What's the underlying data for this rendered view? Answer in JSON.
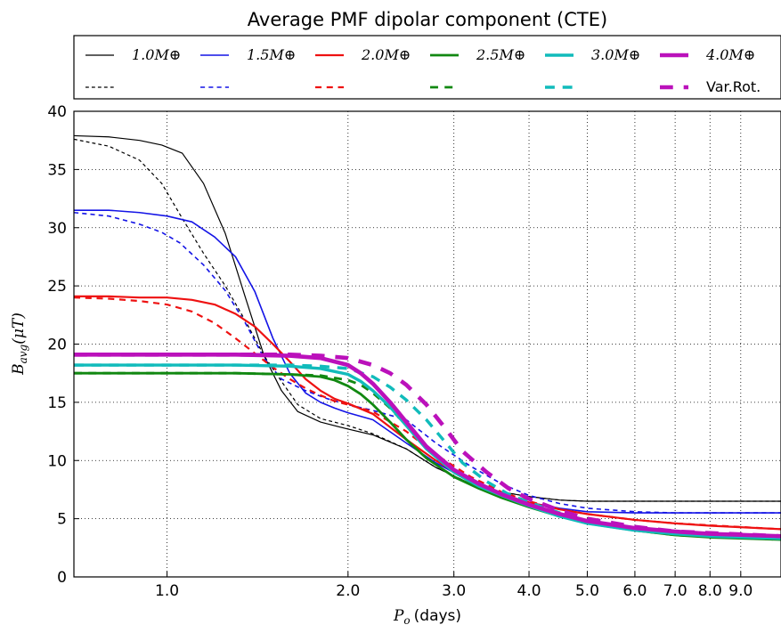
{
  "chart_data": {
    "type": "line",
    "title": "Average PMF dipolar component (CTE)",
    "xlabel": "(days)",
    "xlabel_symbol": "P",
    "xlabel_symbol_sub": "o",
    "ylabel": "(μT)",
    "ylabel_symbol": "B",
    "ylabel_symbol_sub": "avg",
    "x_scale": "log",
    "xlim": [
      0.7,
      10.5
    ],
    "ylim": [
      0,
      40
    ],
    "x_ticks": [
      1.0,
      2.0,
      3.0,
      4.0,
      5.0,
      6.0,
      7.0,
      8.0,
      9.0
    ],
    "x_tick_labels": [
      "1.0",
      "2.0",
      "3.0",
      "4.0",
      "5.0",
      "6.0",
      "7.0",
      "8.0",
      "9.0"
    ],
    "y_ticks": [
      0,
      5,
      10,
      15,
      20,
      25,
      30,
      35,
      40
    ],
    "y_tick_labels": [
      "0",
      "5",
      "10",
      "15",
      "20",
      "25",
      "30",
      "35",
      "40"
    ],
    "grid": true,
    "legend_position": "top",
    "legend_extra_label": "Var.Rot.",
    "series": [
      {
        "name": "1.0M⊕",
        "color": "#000000",
        "style": "solid",
        "width": 1.2,
        "x": [
          0.7,
          0.8,
          0.9,
          0.98,
          1.06,
          1.15,
          1.25,
          1.35,
          1.45,
          1.55,
          1.65,
          1.8,
          2.0,
          2.2,
          2.5,
          2.8,
          3.2,
          3.6,
          4.0,
          4.5,
          5.0,
          6.0,
          7.0,
          8.0,
          10.5
        ],
        "y": [
          37.9,
          37.8,
          37.5,
          37.1,
          36.4,
          33.8,
          29.5,
          24.0,
          19.0,
          16.0,
          14.2,
          13.3,
          12.7,
          12.2,
          11.0,
          9.4,
          8.0,
          7.3,
          6.9,
          6.6,
          6.5,
          6.5,
          6.5,
          6.5,
          6.5
        ]
      },
      {
        "name": "",
        "color": "#000000",
        "style": "dashed",
        "width": 1.2,
        "x": [
          0.7,
          0.8,
          0.9,
          0.98,
          1.06,
          1.15,
          1.25,
          1.35,
          1.45,
          1.55,
          1.65,
          1.8,
          2.0,
          2.2,
          2.5,
          2.8,
          3.2,
          3.6,
          4.0,
          4.5,
          5.0,
          6.0,
          7.0,
          8.0,
          10.5
        ],
        "y": [
          37.6,
          37.0,
          35.8,
          33.8,
          30.8,
          27.8,
          25.0,
          22.0,
          19.0,
          16.8,
          14.8,
          13.6,
          13.0,
          12.3,
          11.0,
          9.4,
          8.0,
          7.3,
          6.9,
          6.6,
          6.5,
          6.5,
          6.5,
          6.5,
          6.5
        ]
      },
      {
        "name": "1.5M⊕",
        "color": "#1414e6",
        "style": "solid",
        "width": 1.6,
        "x": [
          0.7,
          0.8,
          0.9,
          1.0,
          1.1,
          1.2,
          1.3,
          1.4,
          1.5,
          1.6,
          1.7,
          1.8,
          1.9,
          2.0,
          2.2,
          2.5,
          2.8,
          3.2,
          3.6,
          4.0,
          4.5,
          5.0,
          6.0,
          7.0,
          10.5
        ],
        "y": [
          31.5,
          31.5,
          31.3,
          31.0,
          30.5,
          29.2,
          27.5,
          24.5,
          20.5,
          17.5,
          15.8,
          15.0,
          14.5,
          14.1,
          13.5,
          11.5,
          9.8,
          8.2,
          7.0,
          6.4,
          5.9,
          5.6,
          5.5,
          5.5,
          5.5
        ]
      },
      {
        "name": "",
        "color": "#1414e6",
        "style": "dashed",
        "width": 1.6,
        "x": [
          0.7,
          0.8,
          0.9,
          0.98,
          1.05,
          1.15,
          1.25,
          1.35,
          1.45,
          1.55,
          1.7,
          1.85,
          2.0,
          2.2,
          2.5,
          2.8,
          3.2,
          3.6,
          4.0,
          4.5,
          5.0,
          6.0,
          7.0,
          10.5
        ],
        "y": [
          31.3,
          31.0,
          30.3,
          29.6,
          28.7,
          26.8,
          24.6,
          21.8,
          18.8,
          17.0,
          16.0,
          15.3,
          14.8,
          14.3,
          13.5,
          11.5,
          9.5,
          8.0,
          7.0,
          6.3,
          5.9,
          5.6,
          5.5,
          5.5
        ]
      },
      {
        "name": "2.0M⊕",
        "color": "#ee1111",
        "style": "solid",
        "width": 2.2,
        "x": [
          0.7,
          0.8,
          0.9,
          1.0,
          1.1,
          1.2,
          1.3,
          1.4,
          1.5,
          1.6,
          1.7,
          1.8,
          1.9,
          2.0,
          2.2,
          2.5,
          2.8,
          3.2,
          3.6,
          4.0,
          4.5,
          5.0,
          6.0,
          7.0,
          8.0,
          10.5
        ],
        "y": [
          24.1,
          24.1,
          24.0,
          24.0,
          23.8,
          23.4,
          22.6,
          21.5,
          20.0,
          18.5,
          17.0,
          16.0,
          15.3,
          14.9,
          14.0,
          11.8,
          10.0,
          8.2,
          7.1,
          6.4,
          5.8,
          5.4,
          4.9,
          4.6,
          4.4,
          4.1
        ]
      },
      {
        "name": "",
        "color": "#ee1111",
        "style": "dashed",
        "width": 2.2,
        "x": [
          0.7,
          0.8,
          0.9,
          1.0,
          1.1,
          1.2,
          1.3,
          1.4,
          1.5,
          1.6,
          1.7,
          1.8,
          1.9,
          2.0,
          2.2,
          2.5,
          2.8,
          3.2,
          3.6,
          4.0,
          4.5,
          5.0,
          6.0,
          7.0,
          10.5
        ],
        "y": [
          24.0,
          23.9,
          23.7,
          23.4,
          22.8,
          21.8,
          20.5,
          19.2,
          18.0,
          17.0,
          16.2,
          15.6,
          15.1,
          14.8,
          14.2,
          12.5,
          10.5,
          8.6,
          7.3,
          6.5,
          5.8,
          5.4,
          4.9,
          4.6,
          4.1
        ]
      },
      {
        "name": "2.5M⊕",
        "color": "#118811",
        "style": "solid",
        "width": 2.8,
        "x": [
          0.7,
          1.0,
          1.3,
          1.6,
          1.8,
          1.9,
          2.0,
          2.1,
          2.2,
          2.35,
          2.5,
          2.7,
          3.0,
          3.3,
          3.6,
          4.0,
          4.5,
          5.0,
          6.0,
          7.0,
          8.0,
          10.5
        ],
        "y": [
          17.5,
          17.5,
          17.5,
          17.4,
          17.2,
          16.9,
          16.4,
          15.7,
          14.8,
          13.3,
          11.8,
          10.2,
          8.6,
          7.6,
          6.8,
          6.0,
          5.2,
          4.6,
          4.0,
          3.6,
          3.4,
          3.2
        ]
      },
      {
        "name": "",
        "color": "#118811",
        "style": "dashed",
        "width": 2.8,
        "x": [
          0.7,
          1.0,
          1.3,
          1.6,
          1.8,
          2.0,
          2.1,
          2.2,
          2.35,
          2.5,
          2.7,
          3.0,
          3.3,
          3.6,
          4.0,
          4.5,
          5.0,
          6.0,
          7.0,
          10.5
        ],
        "y": [
          17.5,
          17.5,
          17.5,
          17.4,
          17.3,
          16.9,
          16.5,
          15.8,
          14.5,
          13.0,
          11.2,
          9.2,
          7.9,
          7.0,
          6.1,
          5.3,
          4.7,
          4.0,
          3.6,
          3.2
        ]
      },
      {
        "name": "3.0M⊕",
        "color": "#11bbbb",
        "style": "solid",
        "width": 3.4,
        "x": [
          0.7,
          1.0,
          1.3,
          1.6,
          1.8,
          2.0,
          2.1,
          2.2,
          2.35,
          2.5,
          2.7,
          3.0,
          3.3,
          3.6,
          4.0,
          4.5,
          5.0,
          6.0,
          7.0,
          8.0,
          10.5
        ],
        "y": [
          18.2,
          18.2,
          18.2,
          18.1,
          17.9,
          17.4,
          16.8,
          16.0,
          14.6,
          13.0,
          11.0,
          9.0,
          7.8,
          7.0,
          6.1,
          5.2,
          4.6,
          4.0,
          3.7,
          3.5,
          3.3
        ]
      },
      {
        "name": "",
        "color": "#11bbbb",
        "style": "dashed",
        "width": 3.4,
        "x": [
          0.7,
          1.0,
          1.3,
          1.6,
          1.8,
          2.0,
          2.2,
          2.35,
          2.5,
          2.7,
          2.9,
          3.1,
          3.4,
          3.7,
          4.0,
          4.5,
          5.0,
          6.0,
          7.0,
          10.5
        ],
        "y": [
          18.2,
          18.2,
          18.2,
          18.2,
          18.1,
          17.9,
          17.2,
          16.3,
          15.2,
          13.5,
          11.6,
          9.8,
          8.2,
          7.1,
          6.4,
          5.5,
          4.8,
          4.1,
          3.7,
          3.3
        ]
      },
      {
        "name": "4.0M⊕",
        "color": "#bb11bb",
        "style": "solid",
        "width": 4.6,
        "x": [
          0.7,
          1.0,
          1.3,
          1.6,
          1.8,
          2.0,
          2.1,
          2.2,
          2.35,
          2.5,
          2.7,
          3.0,
          3.3,
          3.6,
          4.0,
          4.5,
          5.0,
          6.0,
          7.0,
          8.0,
          10.5
        ],
        "y": [
          19.1,
          19.1,
          19.1,
          19.0,
          18.8,
          18.2,
          17.5,
          16.6,
          15.0,
          13.3,
          11.2,
          9.2,
          8.0,
          7.1,
          6.2,
          5.4,
          4.8,
          4.2,
          3.9,
          3.7,
          3.5
        ]
      },
      {
        "name": "",
        "color": "#bb11bb",
        "style": "dashed",
        "width": 4.6,
        "x": [
          0.7,
          1.0,
          1.3,
          1.6,
          1.8,
          2.0,
          2.2,
          2.35,
          2.5,
          2.7,
          2.9,
          3.1,
          3.4,
          3.7,
          4.0,
          4.5,
          5.0,
          6.0,
          7.0,
          10.5
        ],
        "y": [
          19.1,
          19.1,
          19.1,
          19.1,
          19.0,
          18.8,
          18.2,
          17.5,
          16.5,
          14.8,
          12.8,
          10.8,
          9.0,
          7.6,
          6.7,
          5.7,
          5.0,
          4.3,
          3.9,
          3.5
        ]
      }
    ]
  }
}
